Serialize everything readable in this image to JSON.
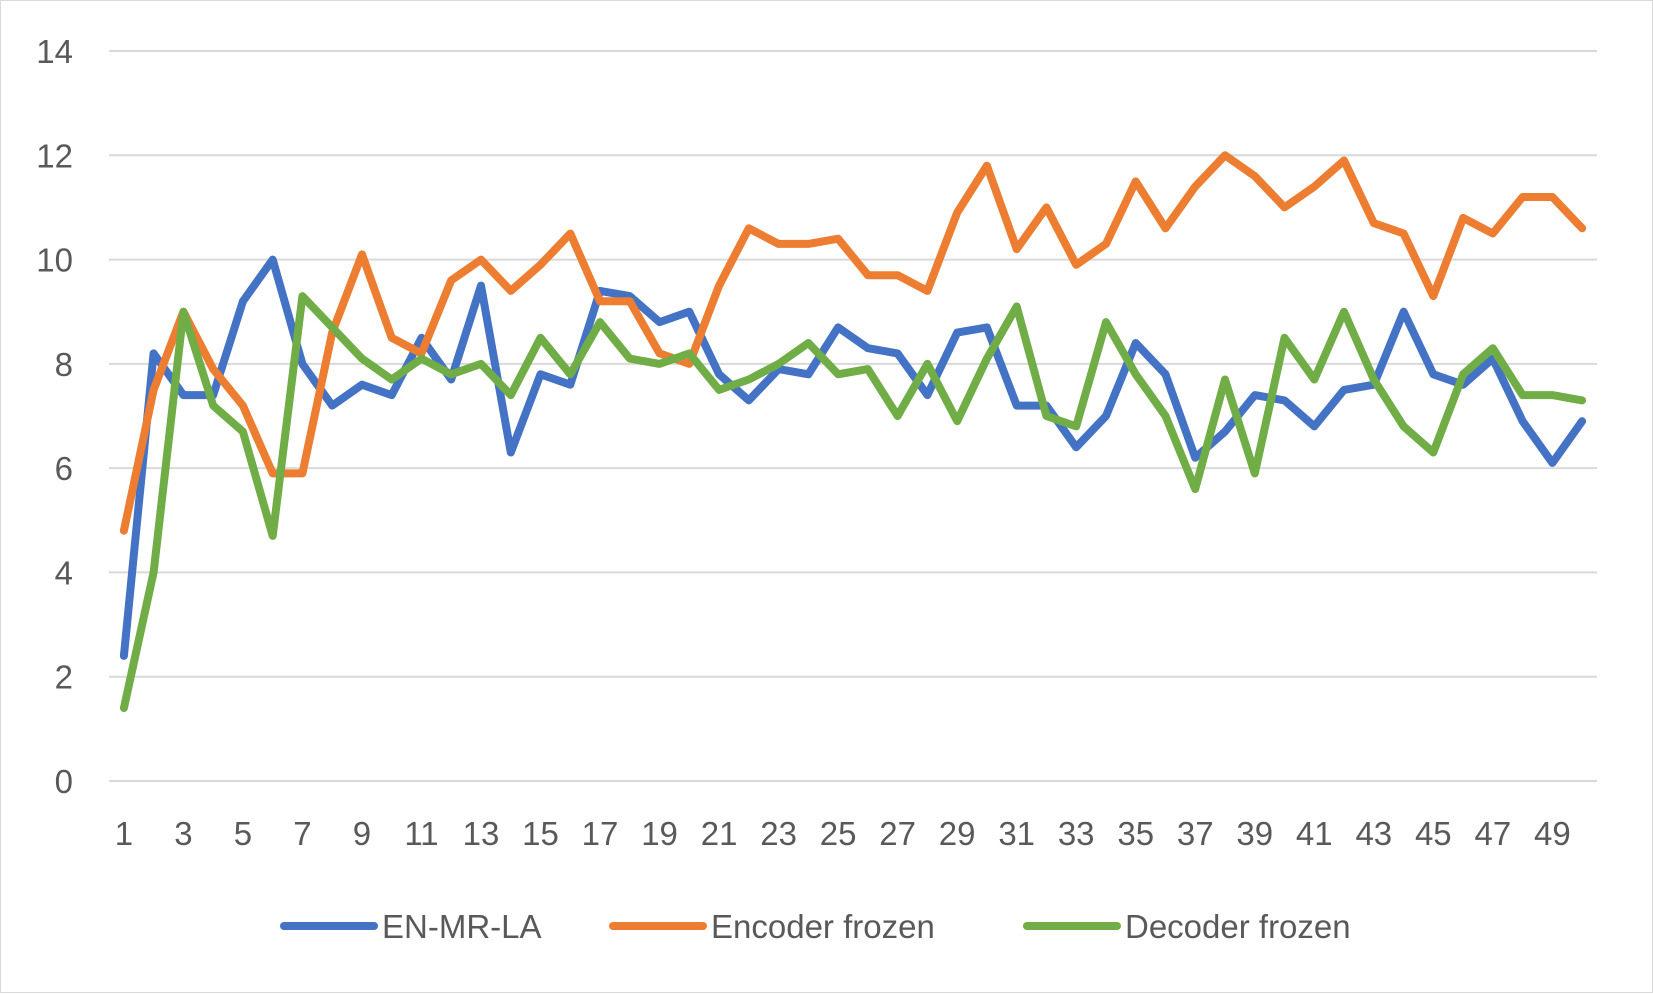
{
  "chart_data": {
    "type": "line",
    "title": "",
    "xlabel": "",
    "ylabel": "",
    "ylim": [
      0,
      14
    ],
    "yticks": [
      "0",
      "2",
      "4",
      "6",
      "8",
      "10",
      "12",
      "14"
    ],
    "x": [
      1,
      2,
      3,
      4,
      5,
      6,
      7,
      8,
      9,
      10,
      11,
      12,
      13,
      14,
      15,
      16,
      17,
      18,
      19,
      20,
      21,
      22,
      23,
      24,
      25,
      26,
      27,
      28,
      29,
      30,
      31,
      32,
      33,
      34,
      35,
      36,
      37,
      38,
      39,
      40,
      41,
      42,
      43,
      44,
      45,
      46,
      47,
      48,
      49,
      50
    ],
    "xtick_labels": [
      "1",
      "3",
      "5",
      "7",
      "9",
      "11",
      "13",
      "15",
      "17",
      "19",
      "21",
      "23",
      "25",
      "27",
      "29",
      "31",
      "33",
      "35",
      "37",
      "39",
      "41",
      "43",
      "45",
      "47",
      "49"
    ],
    "grid": true,
    "legend_position": "bottom",
    "series": [
      {
        "name": "EN-MR-LA",
        "color": "#4472c4",
        "values": [
          2.4,
          8.2,
          7.4,
          7.4,
          9.2,
          10.0,
          8.0,
          7.2,
          7.6,
          7.4,
          8.5,
          7.7,
          9.5,
          6.3,
          7.8,
          7.6,
          9.4,
          9.3,
          8.8,
          9.0,
          7.8,
          7.3,
          7.9,
          7.8,
          8.7,
          8.3,
          8.2,
          7.4,
          8.6,
          8.7,
          7.2,
          7.2,
          6.4,
          7.0,
          8.4,
          7.8,
          6.2,
          6.7,
          7.4,
          7.3,
          6.8,
          7.5,
          7.6,
          9.0,
          7.8,
          7.6,
          8.1,
          6.9,
          6.1,
          6.9
        ]
      },
      {
        "name": "Encoder frozen",
        "color": "#ed7d31",
        "values": [
          4.8,
          7.5,
          9.0,
          7.9,
          7.2,
          5.9,
          5.9,
          8.6,
          10.1,
          8.5,
          8.2,
          9.6,
          10.0,
          9.4,
          9.9,
          10.5,
          9.2,
          9.2,
          8.2,
          8.0,
          9.5,
          10.6,
          10.3,
          10.3,
          10.4,
          9.7,
          9.7,
          9.4,
          10.9,
          11.8,
          10.2,
          11.0,
          9.9,
          10.3,
          11.5,
          10.6,
          11.4,
          12.0,
          11.6,
          11.0,
          11.4,
          11.9,
          10.7,
          10.5,
          9.3,
          10.8,
          10.5,
          11.2,
          11.2,
          10.6
        ]
      },
      {
        "name": "Decoder frozen",
        "color": "#70ad47",
        "values": [
          1.4,
          4.0,
          9.0,
          7.2,
          6.7,
          4.7,
          9.3,
          8.7,
          8.1,
          7.7,
          8.1,
          7.8,
          8.0,
          7.4,
          8.5,
          7.8,
          8.8,
          8.1,
          8.0,
          8.2,
          7.5,
          7.7,
          8.0,
          8.4,
          7.8,
          7.9,
          7.0,
          8.0,
          6.9,
          8.1,
          9.1,
          7.0,
          6.8,
          8.8,
          7.8,
          7.0,
          5.6,
          7.7,
          5.9,
          8.5,
          7.7,
          9.0,
          7.7,
          6.8,
          6.3,
          7.8,
          8.3,
          7.4,
          7.4,
          7.3
        ]
      }
    ]
  }
}
